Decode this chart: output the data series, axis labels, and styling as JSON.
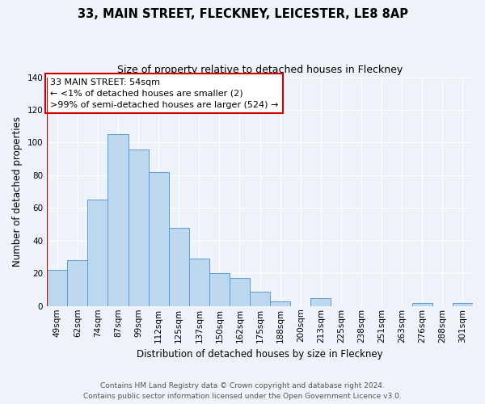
{
  "title": "33, MAIN STREET, FLECKNEY, LEICESTER, LE8 8AP",
  "subtitle": "Size of property relative to detached houses in Fleckney",
  "xlabel": "Distribution of detached houses by size in Fleckney",
  "ylabel": "Number of detached properties",
  "bin_labels": [
    "49sqm",
    "62sqm",
    "74sqm",
    "87sqm",
    "99sqm",
    "112sqm",
    "125sqm",
    "137sqm",
    "150sqm",
    "162sqm",
    "175sqm",
    "188sqm",
    "200sqm",
    "213sqm",
    "225sqm",
    "238sqm",
    "251sqm",
    "263sqm",
    "276sqm",
    "288sqm",
    "301sqm"
  ],
  "bar_heights": [
    22,
    28,
    65,
    105,
    96,
    82,
    48,
    29,
    20,
    17,
    9,
    3,
    0,
    5,
    0,
    0,
    0,
    0,
    2,
    0,
    2
  ],
  "bar_color": "#bdd7ee",
  "bar_edge_color": "#5b9bd5",
  "ylim": [
    0,
    140
  ],
  "yticks": [
    0,
    20,
    40,
    60,
    80,
    100,
    120,
    140
  ],
  "annotation_line1": "33 MAIN STREET: 54sqm",
  "annotation_line2": "← <1% of detached houses are smaller (2)",
  "annotation_line3": ">99% of semi-detached houses are larger (524) →",
  "annotation_box_color": "#ffffff",
  "annotation_box_edge_color": "#cc0000",
  "red_line_x": 0,
  "footer_line1": "Contains HM Land Registry data © Crown copyright and database right 2024.",
  "footer_line2": "Contains public sector information licensed under the Open Government Licence v3.0.",
  "background_color": "#eef2f9",
  "grid_color": "#ffffff",
  "title_fontsize": 10.5,
  "subtitle_fontsize": 9,
  "axis_label_fontsize": 8.5,
  "tick_fontsize": 7.5,
  "annotation_fontsize": 8,
  "footer_fontsize": 6.5
}
